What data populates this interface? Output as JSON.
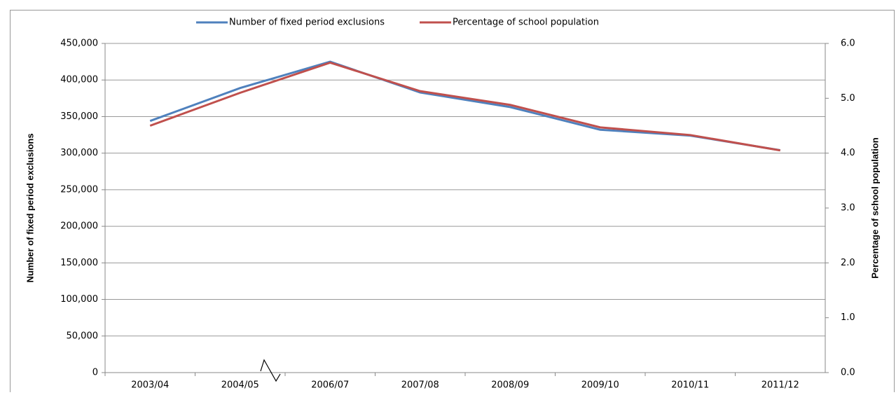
{
  "chart_data": {
    "type": "line",
    "categories": [
      "2003/04",
      "2004/05",
      "2006/07",
      "2007/08",
      "2008/09",
      "2009/10",
      "2010/11",
      "2011/12"
    ],
    "series": [
      {
        "name": "Number of fixed period exclusions",
        "color": "#4f81bd",
        "values": [
          344000,
          389000,
          425000,
          383000,
          363000,
          332000,
          324000,
          304000
        ]
      },
      {
        "name": "Percentage of school population",
        "color": "#c0504d",
        "axis": "y2",
        "values": [
          4.5,
          5.1,
          5.65,
          5.13,
          4.88,
          4.47,
          4.33,
          4.05
        ]
      }
    ],
    "y_label": "Number of fixed period exclusions",
    "y2_label": "Percentage of school population",
    "ylim": [
      0,
      450000
    ],
    "yticks": [
      0,
      {
        "value": 50000,
        "label": "50,000"
      },
      {
        "value": 100000,
        "label": "100,000"
      },
      {
        "value": 150000,
        "label": "150,000"
      },
      {
        "value": 200000,
        "label": "200,000"
      },
      {
        "value": 250000,
        "label": "250,000"
      },
      {
        "value": 300000,
        "label": "300,000"
      },
      {
        "value": 350000,
        "label": "350,000"
      },
      {
        "value": 400000,
        "label": "400,000"
      },
      {
        "value": 450000,
        "label": "450,000"
      }
    ],
    "y2lim": [
      0,
      6
    ],
    "y2ticks": [
      {
        "value": 0,
        "label": "0.0"
      },
      {
        "value": 1,
        "label": "1.0"
      },
      {
        "value": 2,
        "label": "2.0"
      },
      {
        "value": 3,
        "label": "3.0"
      },
      {
        "value": 4,
        "label": "4.0"
      },
      {
        "value": 5,
        "label": "5.0"
      },
      {
        "value": 6,
        "label": "6.0"
      }
    ],
    "grid": true,
    "legend": "top"
  }
}
